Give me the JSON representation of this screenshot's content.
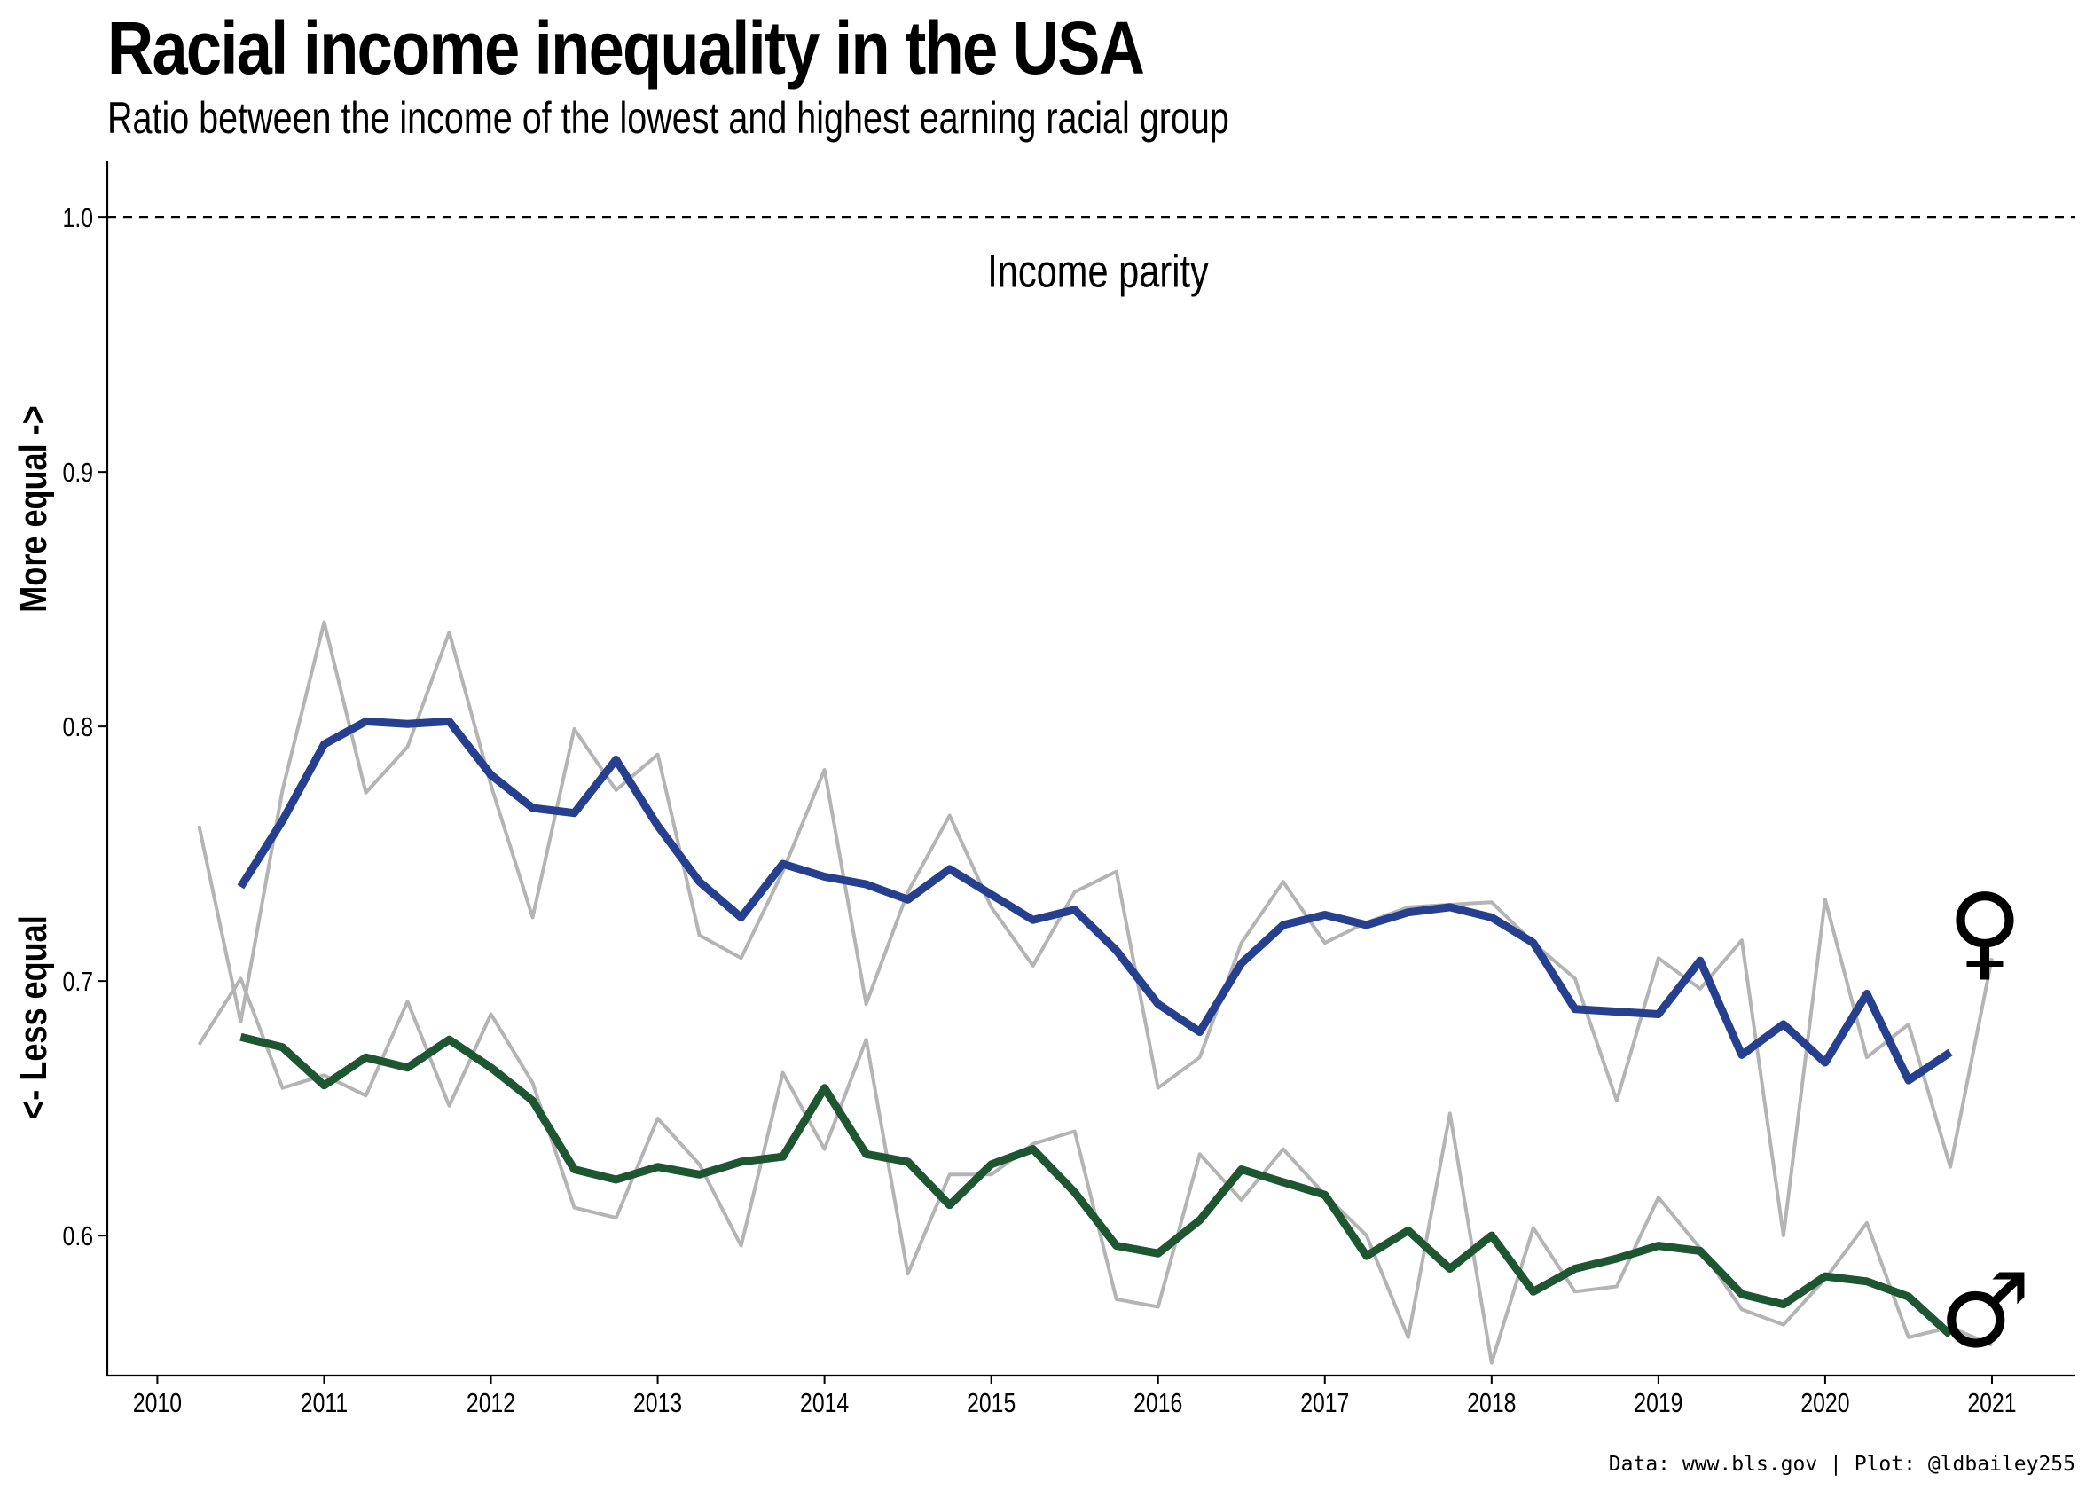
{
  "chart_data": {
    "type": "line",
    "title": "Racial income inequality in the USA",
    "subtitle": "Ratio between the income of the lowest and highest earning racial group",
    "caption": "Data: www.bls.gov | Plot: @ldbailey255",
    "ylabel_upper": "More equal ->",
    "ylabel_lower": "<- Less equal",
    "xlabel": "",
    "xlim": [
      2009.7,
      2021.5
    ],
    "ylim": [
      0.545,
      1.022
    ],
    "x_ticks": [
      2010,
      2011,
      2012,
      2013,
      2014,
      2015,
      2016,
      2017,
      2018,
      2019,
      2020,
      2021
    ],
    "y_ticks": [
      0.6,
      0.7,
      0.8,
      0.9,
      1.0
    ],
    "y_tick_labels": [
      "0.6",
      "0.7",
      "0.8",
      "0.9",
      "1.0"
    ],
    "grid": false,
    "reference_line": {
      "y": 1.0,
      "label": "Income parity",
      "label_x": 2015.64,
      "label_y": 0.979
    },
    "series": [
      {
        "color": "#b4b4b4",
        "x": [
          2010.25,
          2010.5,
          2010.75,
          2011.0,
          2011.25,
          2011.5,
          2011.75,
          2012.0,
          2012.25,
          2012.5,
          2012.75,
          2013.0,
          2013.25,
          2013.5,
          2013.75,
          2014.0,
          2014.25,
          2014.5,
          2014.75,
          2015.0,
          2015.25,
          2015.5,
          2015.75,
          2016.0,
          2016.25,
          2016.5,
          2016.75,
          2017.0,
          2017.25,
          2017.5,
          2017.75,
          2018.0,
          2018.25,
          2018.5,
          2018.75,
          2019.0,
          2019.25,
          2019.5,
          2019.75,
          2020.0,
          2020.25,
          2020.5,
          2020.75,
          2021.0
        ],
        "values": [
          0.761,
          0.684,
          0.775,
          0.841,
          0.774,
          0.792,
          0.837,
          0.777,
          0.725,
          0.799,
          0.775,
          0.789,
          0.718,
          0.709,
          0.743,
          0.783,
          0.691,
          0.735,
          0.765,
          0.729,
          0.706,
          0.735,
          0.743,
          0.658,
          0.67,
          0.715,
          0.739,
          0.715,
          0.723,
          0.729,
          0.73,
          0.731,
          0.715,
          0.701,
          0.653,
          0.709,
          0.697,
          0.716,
          0.6,
          0.732,
          0.67,
          0.683,
          0.627,
          0.709
        ]
      },
      {
        "color": "#b4b4b4",
        "x": [
          2010.25,
          2010.5,
          2010.75,
          2011.0,
          2011.25,
          2011.5,
          2011.75,
          2012.0,
          2012.25,
          2012.5,
          2012.75,
          2013.0,
          2013.25,
          2013.5,
          2013.75,
          2014.0,
          2014.25,
          2014.5,
          2014.75,
          2015.0,
          2015.25,
          2015.5,
          2015.75,
          2016.0,
          2016.25,
          2016.5,
          2016.75,
          2017.0,
          2017.25,
          2017.5,
          2017.75,
          2018.0,
          2018.25,
          2018.5,
          2018.75,
          2019.0,
          2019.25,
          2019.5,
          2019.75,
          2020.0,
          2020.25,
          2020.5,
          2020.75,
          2021.0
        ],
        "values": [
          0.675,
          0.701,
          0.658,
          0.663,
          0.655,
          0.692,
          0.651,
          0.687,
          0.66,
          0.611,
          0.607,
          0.646,
          0.628,
          0.596,
          0.664,
          0.634,
          0.677,
          0.585,
          0.624,
          0.624,
          0.636,
          0.641,
          0.575,
          0.572,
          0.632,
          0.614,
          0.634,
          0.616,
          0.6,
          0.56,
          0.648,
          0.55,
          0.603,
          0.578,
          0.58,
          0.615,
          0.595,
          0.571,
          0.565,
          0.583,
          0.605,
          0.56,
          0.564,
          0.557
        ]
      },
      {
        "color": "#263f8f",
        "end_marker": "♀",
        "x": [
          2010.5,
          2010.75,
          2011.0,
          2011.25,
          2011.5,
          2011.75,
          2012.0,
          2012.25,
          2012.5,
          2012.75,
          2013.0,
          2013.25,
          2013.5,
          2013.75,
          2014.0,
          2014.25,
          2014.5,
          2014.75,
          2015.0,
          2015.25,
          2015.5,
          2015.75,
          2016.0,
          2016.25,
          2016.5,
          2016.75,
          2017.0,
          2017.25,
          2017.5,
          2017.75,
          2018.0,
          2018.25,
          2018.5,
          2018.75,
          2019.0,
          2019.25,
          2019.5,
          2019.75,
          2020.0,
          2020.25,
          2020.5,
          2020.75
        ],
        "values": [
          0.737,
          0.763,
          0.793,
          0.802,
          0.801,
          0.802,
          0.781,
          0.768,
          0.766,
          0.787,
          0.761,
          0.739,
          0.725,
          0.746,
          0.741,
          0.738,
          0.732,
          0.744,
          0.734,
          0.724,
          0.728,
          0.712,
          0.691,
          0.68,
          0.707,
          0.722,
          0.726,
          0.722,
          0.727,
          0.729,
          0.725,
          0.715,
          0.689,
          0.688,
          0.687,
          0.708,
          0.671,
          0.683,
          0.668,
          0.695,
          0.661,
          0.672
        ]
      },
      {
        "color": "#1e5631",
        "end_marker": "♂",
        "x": [
          2010.5,
          2010.75,
          2011.0,
          2011.25,
          2011.5,
          2011.75,
          2012.0,
          2012.25,
          2012.5,
          2012.75,
          2013.0,
          2013.25,
          2013.5,
          2013.75,
          2014.0,
          2014.25,
          2014.5,
          2014.75,
          2015.0,
          2015.25,
          2015.5,
          2015.75,
          2016.0,
          2016.25,
          2016.5,
          2016.75,
          2017.0,
          2017.25,
          2017.5,
          2017.75,
          2018.0,
          2018.25,
          2018.5,
          2018.75,
          2019.0,
          2019.25,
          2019.5,
          2019.75,
          2020.0,
          2020.25,
          2020.5,
          2020.75
        ],
        "values": [
          0.678,
          0.674,
          0.659,
          0.67,
          0.666,
          0.677,
          0.666,
          0.653,
          0.626,
          0.622,
          0.627,
          0.624,
          0.629,
          0.631,
          0.658,
          0.632,
          0.629,
          0.612,
          0.628,
          0.634,
          0.617,
          0.596,
          0.593,
          0.606,
          0.626,
          0.621,
          0.616,
          0.592,
          0.602,
          0.587,
          0.6,
          0.578,
          0.587,
          0.591,
          0.596,
          0.594,
          0.577,
          0.573,
          0.584,
          0.582,
          0.576,
          0.561
        ]
      }
    ]
  }
}
